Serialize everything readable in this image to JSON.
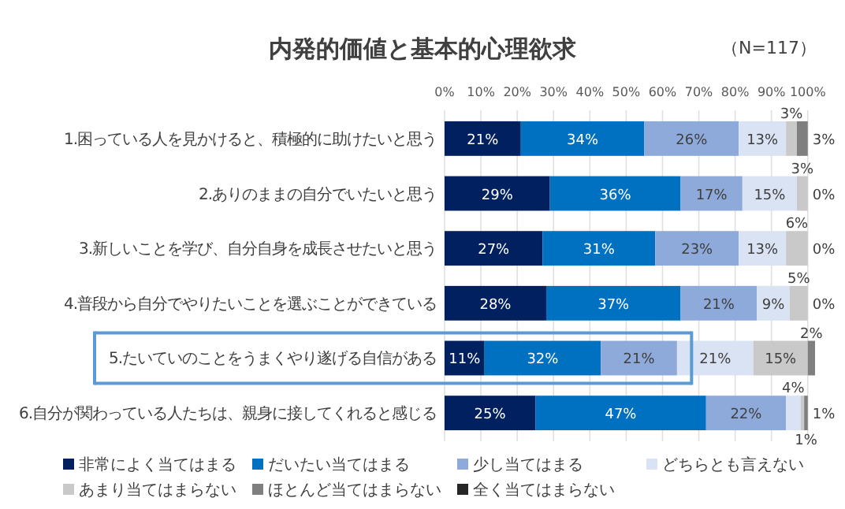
{
  "chart_data": {
    "type": "bar",
    "orientation": "horizontal",
    "stacked": true,
    "title": "内発的価値と基本的心理欲求",
    "annotations": [
      "（N=117）"
    ],
    "categories": [
      "1.困っている人を見かけると、積極的に助けたいと思う",
      "2.ありのままの自分でいたいと思う",
      "3.新しいことを学び、自分自身を成長させたいと思う",
      "4.普段から自分でやりたいことを選ぶことができている",
      "5.たいていのことをうまくやり遂げる自信がある",
      "6.自分が関わっている人たちは、親身に接してくれると感じる"
    ],
    "series": [
      {
        "name": "非常によく当てはまる",
        "color": "#002060",
        "values": [
          21,
          29,
          27,
          28,
          11,
          25
        ],
        "value_labels": [
          "21%",
          "29%",
          "27%",
          "28%",
          "11%",
          "25%"
        ]
      },
      {
        "name": "だいたい当てはまる",
        "color": "#0070c0",
        "values": [
          34,
          36,
          31,
          37,
          32,
          47
        ],
        "value_labels": [
          "34%",
          "36%",
          "31%",
          "37%",
          "32%",
          "47%"
        ]
      },
      {
        "name": "少し当てはまる",
        "color": "#8eaadb",
        "values": [
          26,
          17,
          23,
          21,
          21,
          22
        ],
        "value_labels": [
          "26%",
          "17%",
          "23%",
          "21%",
          "21%",
          "22%"
        ]
      },
      {
        "name": "どちらとも言えない",
        "color": "#dae3f3",
        "values": [
          13,
          15,
          13,
          9,
          21,
          4
        ],
        "value_labels": [
          "13%",
          "15%",
          "13%",
          "9%",
          "21%",
          "4%"
        ]
      },
      {
        "name": "あまり当てはまらない",
        "color": "#c9c9c9",
        "values": [
          3,
          3,
          6,
          5,
          15,
          1
        ],
        "value_labels": [
          "3%",
          "3%",
          "6%",
          "5%",
          "15%",
          "1%"
        ]
      },
      {
        "name": "ほとんど当てはまらない",
        "color": "#7f7f7f",
        "values": [
          3,
          0,
          0,
          0,
          2,
          1
        ],
        "value_labels": [
          "3%",
          "0%",
          "0%",
          "0%",
          "2%",
          "1%"
        ]
      },
      {
        "name": "全く当てはまらない",
        "color": "#262626",
        "values": [
          null,
          null,
          null,
          null,
          null,
          null
        ]
      }
    ],
    "xlim": [
      0,
      102
    ],
    "xticks": [
      {
        "value": 0,
        "label": "0%"
      },
      {
        "value": 10,
        "label": "10%"
      },
      {
        "value": 20,
        "label": "20%"
      },
      {
        "value": 30,
        "label": "30%"
      },
      {
        "value": 40,
        "label": "40%"
      },
      {
        "value": 50,
        "label": "50%"
      },
      {
        "value": 60,
        "label": "60%"
      },
      {
        "value": 70,
        "label": "70%"
      },
      {
        "value": 80,
        "label": "80%"
      },
      {
        "value": 90,
        "label": "90%"
      },
      {
        "value": 100,
        "label": "100%"
      }
    ],
    "grid": "x",
    "legend": "bottom"
  }
}
